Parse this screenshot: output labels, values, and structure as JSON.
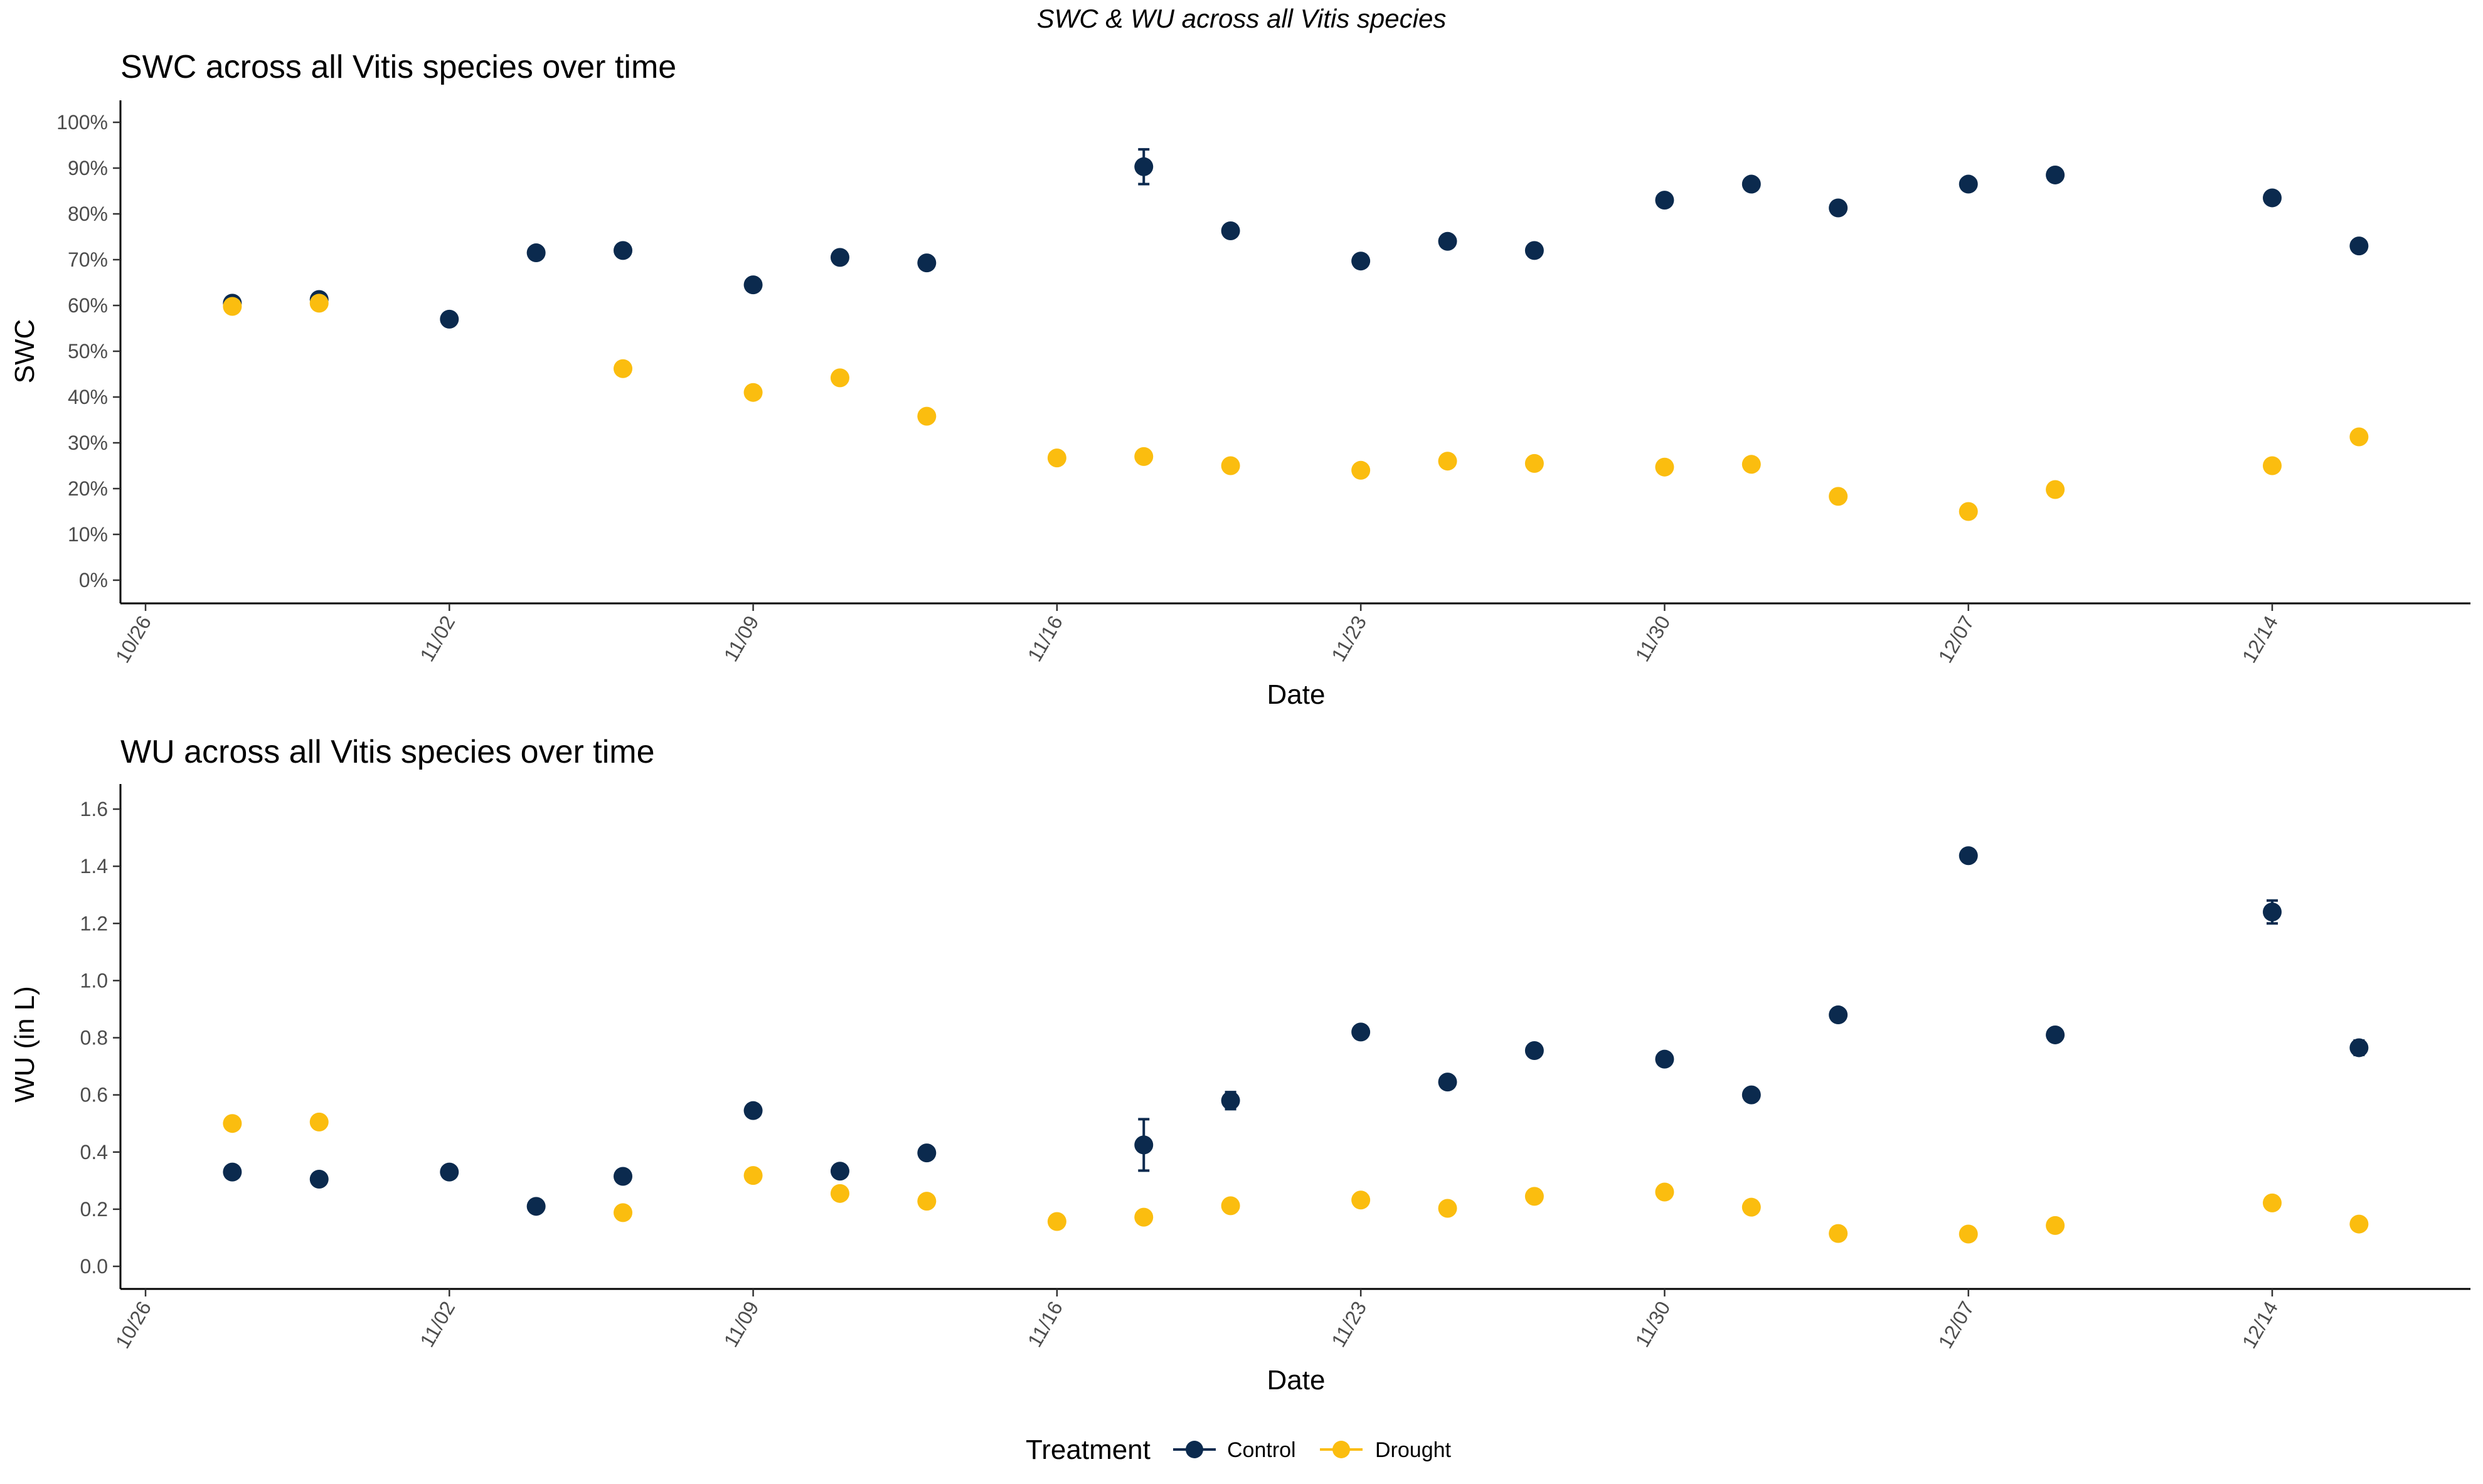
{
  "figure": {
    "suptitle": "SWC & WU  across all Vitis species"
  },
  "colors": {
    "Control": "#0b2a4e",
    "Drought": "#fbbd0f",
    "axis": "#000000",
    "tick_text": "#4d4d4d"
  },
  "legend": {
    "title": "Treatment",
    "items": [
      {
        "label": "Control",
        "color": "#0b2a4e"
      },
      {
        "label": "Drought",
        "color": "#fbbd0f"
      }
    ]
  },
  "chart_data": [
    {
      "type": "scatter",
      "title": "SWC across all Vitis species over time",
      "xlabel": "Date",
      "ylabel": "SWC",
      "x_type": "date",
      "x_ticks": [
        "10/26",
        "11/02",
        "11/09",
        "11/16",
        "11/23",
        "11/30",
        "12/07",
        "12/14"
      ],
      "xlim": [
        "10/26",
        "12/18"
      ],
      "ylim": [
        0,
        1
      ],
      "y_ticks": [
        0,
        0.1,
        0.2,
        0.3,
        0.4,
        0.5,
        0.6,
        0.7,
        0.8,
        0.9,
        1.0
      ],
      "y_tick_labels": [
        "0%",
        "10%",
        "20%",
        "30%",
        "40%",
        "50%",
        "60%",
        "70%",
        "80%",
        "90%",
        "100%"
      ],
      "grid": false,
      "series": [
        {
          "name": "Control",
          "points": [
            {
              "x": "10/28",
              "y": 0.605,
              "err": 0.008
            },
            {
              "x": "10/30",
              "y": 0.613,
              "err": 0.008
            },
            {
              "x": "11/02",
              "y": 0.57
            },
            {
              "x": "11/04",
              "y": 0.715
            },
            {
              "x": "11/06",
              "y": 0.72
            },
            {
              "x": "11/09",
              "y": 0.645
            },
            {
              "x": "11/11",
              "y": 0.705
            },
            {
              "x": "11/13",
              "y": 0.693
            },
            {
              "x": "11/18",
              "y": 0.903,
              "err": 0.038
            },
            {
              "x": "11/20",
              "y": 0.763
            },
            {
              "x": "11/23",
              "y": 0.697
            },
            {
              "x": "11/25",
              "y": 0.74
            },
            {
              "x": "11/27",
              "y": 0.72
            },
            {
              "x": "11/30",
              "y": 0.83
            },
            {
              "x": "12/02",
              "y": 0.865
            },
            {
              "x": "12/04",
              "y": 0.813
            },
            {
              "x": "12/07",
              "y": 0.865
            },
            {
              "x": "12/09",
              "y": 0.885
            },
            {
              "x": "12/14",
              "y": 0.835
            },
            {
              "x": "12/16",
              "y": 0.73
            }
          ]
        },
        {
          "name": "Drought",
          "points": [
            {
              "x": "10/28",
              "y": 0.598
            },
            {
              "x": "10/30",
              "y": 0.605
            },
            {
              "x": "11/06",
              "y": 0.462
            },
            {
              "x": "11/09",
              "y": 0.41
            },
            {
              "x": "11/11",
              "y": 0.442
            },
            {
              "x": "11/13",
              "y": 0.358
            },
            {
              "x": "11/16",
              "y": 0.267
            },
            {
              "x": "11/18",
              "y": 0.27
            },
            {
              "x": "11/20",
              "y": 0.25
            },
            {
              "x": "11/23",
              "y": 0.24
            },
            {
              "x": "11/25",
              "y": 0.26
            },
            {
              "x": "11/27",
              "y": 0.255
            },
            {
              "x": "11/30",
              "y": 0.247
            },
            {
              "x": "12/02",
              "y": 0.253
            },
            {
              "x": "12/04",
              "y": 0.183
            },
            {
              "x": "12/07",
              "y": 0.15
            },
            {
              "x": "12/09",
              "y": 0.198
            },
            {
              "x": "12/14",
              "y": 0.25
            },
            {
              "x": "12/16",
              "y": 0.313
            }
          ]
        }
      ]
    },
    {
      "type": "scatter",
      "title": "WU across all Vitis species over time",
      "xlabel": "Date",
      "ylabel": "WU (in L)",
      "x_type": "date",
      "x_ticks": [
        "10/26",
        "11/02",
        "11/09",
        "11/16",
        "11/23",
        "11/30",
        "12/07",
        "12/14"
      ],
      "xlim": [
        "10/26",
        "12/18"
      ],
      "ylim": [
        -0.08,
        1.68
      ],
      "y_ticks": [
        0.0,
        0.2,
        0.4,
        0.6,
        0.8,
        1.0,
        1.2,
        1.4,
        1.6
      ],
      "y_tick_labels": [
        "0.0",
        "0.2",
        "0.4",
        "0.6",
        "0.8",
        "1.0",
        "1.2",
        "1.4",
        "1.6"
      ],
      "grid": false,
      "series": [
        {
          "name": "Control",
          "points": [
            {
              "x": "10/28",
              "y": 0.33
            },
            {
              "x": "10/30",
              "y": 0.305
            },
            {
              "x": "11/02",
              "y": 0.33
            },
            {
              "x": "11/04",
              "y": 0.21
            },
            {
              "x": "11/06",
              "y": 0.315
            },
            {
              "x": "11/09",
              "y": 0.545
            },
            {
              "x": "11/11",
              "y": 0.333
            },
            {
              "x": "11/13",
              "y": 0.397
            },
            {
              "x": "11/18",
              "y": 0.425,
              "err": 0.09
            },
            {
              "x": "11/20",
              "y": 0.58,
              "err": 0.03
            },
            {
              "x": "11/23",
              "y": 0.82
            },
            {
              "x": "11/25",
              "y": 0.645
            },
            {
              "x": "11/27",
              "y": 0.755
            },
            {
              "x": "11/30",
              "y": 0.725
            },
            {
              "x": "12/02",
              "y": 0.6
            },
            {
              "x": "12/04",
              "y": 0.88
            },
            {
              "x": "12/07",
              "y": 1.437
            },
            {
              "x": "12/09",
              "y": 0.81
            },
            {
              "x": "12/14",
              "y": 1.24,
              "err": 0.04
            },
            {
              "x": "12/16",
              "y": 0.765,
              "err": 0.025
            }
          ]
        },
        {
          "name": "Drought",
          "points": [
            {
              "x": "10/28",
              "y": 0.5
            },
            {
              "x": "10/30",
              "y": 0.505
            },
            {
              "x": "11/06",
              "y": 0.188
            },
            {
              "x": "11/09",
              "y": 0.318
            },
            {
              "x": "11/11",
              "y": 0.255
            },
            {
              "x": "11/13",
              "y": 0.228
            },
            {
              "x": "11/16",
              "y": 0.157
            },
            {
              "x": "11/18",
              "y": 0.172
            },
            {
              "x": "11/20",
              "y": 0.212
            },
            {
              "x": "11/23",
              "y": 0.232
            },
            {
              "x": "11/25",
              "y": 0.203
            },
            {
              "x": "11/27",
              "y": 0.245
            },
            {
              "x": "11/30",
              "y": 0.26
            },
            {
              "x": "12/02",
              "y": 0.207
            },
            {
              "x": "12/04",
              "y": 0.115
            },
            {
              "x": "12/07",
              "y": 0.113
            },
            {
              "x": "12/09",
              "y": 0.143
            },
            {
              "x": "12/14",
              "y": 0.222
            },
            {
              "x": "12/16",
              "y": 0.148
            }
          ]
        }
      ]
    }
  ]
}
